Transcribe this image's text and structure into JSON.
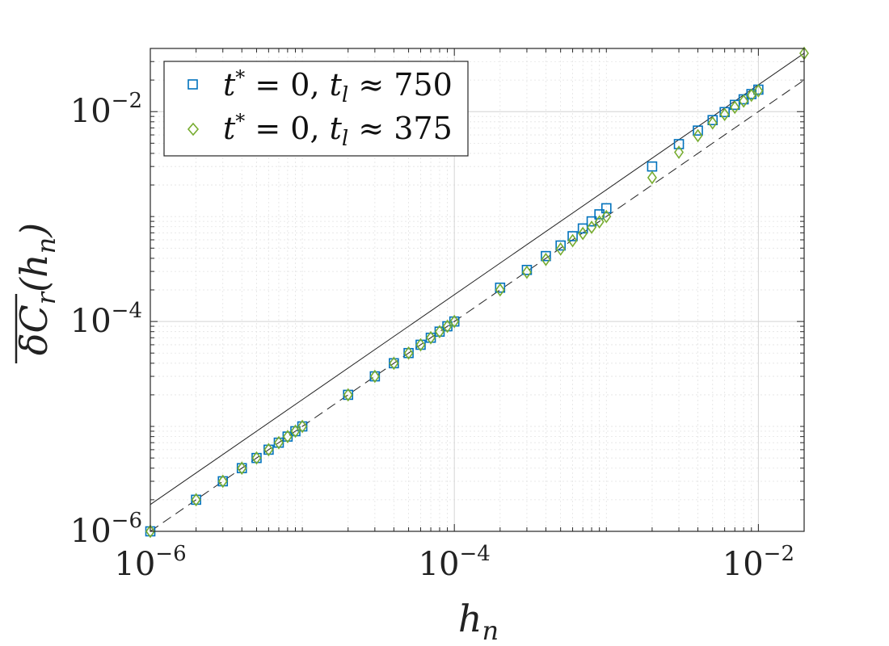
{
  "chart_data": {
    "type": "scatter",
    "x_scale": "log",
    "y_scale": "log",
    "xlim": [
      1e-06,
      0.02
    ],
    "ylim": [
      1e-06,
      0.04
    ],
    "grid": true,
    "legend_position": "top-left",
    "xlabel": "h_n",
    "ylabel": "δC_r(h_n)",
    "x_ticks": [
      {
        "value": 1e-06,
        "base": "10",
        "exp": "−6"
      },
      {
        "value": 0.0001,
        "base": "10",
        "exp": "−4"
      },
      {
        "value": 0.01,
        "base": "10",
        "exp": "−2"
      }
    ],
    "y_ticks": [
      {
        "value": 1e-06,
        "base": "10",
        "exp": "−6"
      },
      {
        "value": 0.0001,
        "base": "10",
        "exp": "−4"
      },
      {
        "value": 0.01,
        "base": "10",
        "exp": "−2"
      }
    ],
    "series": [
      {
        "name": "t* = 0, t_l ≈ 750",
        "marker": "square",
        "color": "#0072BD",
        "points": [
          [
            1e-06,
            1e-06
          ],
          [
            2e-06,
            2e-06
          ],
          [
            3e-06,
            3e-06
          ],
          [
            4e-06,
            4e-06
          ],
          [
            5e-06,
            5e-06
          ],
          [
            6e-06,
            6e-06
          ],
          [
            7e-06,
            7e-06
          ],
          [
            8e-06,
            8e-06
          ],
          [
            9e-06,
            9e-06
          ],
          [
            1e-05,
            1e-05
          ],
          [
            2e-05,
            2e-05
          ],
          [
            3e-05,
            3e-05
          ],
          [
            4e-05,
            4e-05
          ],
          [
            5e-05,
            5e-05
          ],
          [
            6e-05,
            6e-05
          ],
          [
            7e-05,
            7e-05
          ],
          [
            8e-05,
            8e-05
          ],
          [
            9e-05,
            9e-05
          ],
          [
            0.0001,
            0.0001
          ],
          [
            0.0002,
            0.00021
          ],
          [
            0.0003,
            0.00031
          ],
          [
            0.0004,
            0.00042
          ],
          [
            0.0005,
            0.00053
          ],
          [
            0.0006,
            0.00065
          ],
          [
            0.0007,
            0.00077
          ],
          [
            0.0008,
            0.0009
          ],
          [
            0.0009,
            0.00105
          ],
          [
            0.001,
            0.0012
          ],
          [
            0.002,
            0.003
          ],
          [
            0.003,
            0.0049
          ],
          [
            0.004,
            0.0066
          ],
          [
            0.005,
            0.0083
          ],
          [
            0.006,
            0.0099
          ],
          [
            0.007,
            0.0116
          ],
          [
            0.008,
            0.0131
          ],
          [
            0.009,
            0.0147
          ],
          [
            0.01,
            0.0162
          ]
        ]
      },
      {
        "name": "t* = 0, t_l ≈ 375",
        "marker": "diamond",
        "color": "#77AC30",
        "points": [
          [
            1e-06,
            1e-06
          ],
          [
            2e-06,
            2e-06
          ],
          [
            3e-06,
            3e-06
          ],
          [
            4e-06,
            4e-06
          ],
          [
            5e-06,
            5e-06
          ],
          [
            6e-06,
            6e-06
          ],
          [
            7e-06,
            7e-06
          ],
          [
            8e-06,
            8e-06
          ],
          [
            9e-06,
            9e-06
          ],
          [
            1e-05,
            1e-05
          ],
          [
            2e-05,
            2e-05
          ],
          [
            3e-05,
            3e-05
          ],
          [
            4e-05,
            4e-05
          ],
          [
            5e-05,
            5e-05
          ],
          [
            6e-05,
            6e-05
          ],
          [
            7e-05,
            7e-05
          ],
          [
            8e-05,
            8e-05
          ],
          [
            9e-05,
            9e-05
          ],
          [
            0.0001,
            0.0001
          ],
          [
            0.0002,
            0.0002
          ],
          [
            0.0003,
            0.000295
          ],
          [
            0.0004,
            0.00039
          ],
          [
            0.0005,
            0.00049
          ],
          [
            0.0006,
            0.00059
          ],
          [
            0.0007,
            0.00069
          ],
          [
            0.0008,
            0.00079
          ],
          [
            0.0009,
            0.00089
          ],
          [
            0.001,
            0.001
          ],
          [
            0.002,
            0.00235
          ],
          [
            0.003,
            0.0041
          ],
          [
            0.004,
            0.0059
          ],
          [
            0.005,
            0.0078
          ],
          [
            0.006,
            0.0094
          ],
          [
            0.007,
            0.011
          ],
          [
            0.008,
            0.0126
          ],
          [
            0.009,
            0.0143
          ],
          [
            0.01,
            0.0158
          ],
          [
            0.02,
            0.036
          ]
        ]
      }
    ],
    "reference_lines": [
      {
        "style": "solid",
        "color": "#222222",
        "points": [
          [
            1e-06,
            1.8e-06
          ],
          [
            0.02,
            0.036
          ]
        ]
      },
      {
        "style": "dashed",
        "color": "#222222",
        "points": [
          [
            1e-06,
            1e-06
          ],
          [
            0.02,
            0.02
          ]
        ]
      }
    ]
  }
}
